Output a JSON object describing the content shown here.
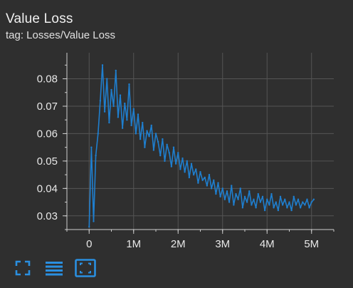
{
  "card": {
    "title": "Value Loss",
    "subtitle": "tag: Losses/Value Loss"
  },
  "toolbar": {
    "icons": [
      "fullscreen-icon",
      "toggle-y-axis-icon",
      "fit-domain-icon"
    ]
  },
  "colors": {
    "background": "#2f2f2f",
    "series": "#1f7fcf",
    "grid": "#555555",
    "axis": "#cfcfcf",
    "icon": "#2a8fe0"
  },
  "chart_data": {
    "type": "line",
    "title": "",
    "xlabel": "",
    "ylabel": "",
    "xlim": [
      -500000,
      5500000
    ],
    "ylim": [
      0.025,
      0.0895
    ],
    "x_ticks": [
      0,
      1000000,
      2000000,
      3000000,
      4000000,
      5000000
    ],
    "x_tick_labels": [
      "0",
      "1M",
      "2M",
      "3M",
      "4M",
      "5M"
    ],
    "y_ticks": [
      0.03,
      0.04,
      0.05,
      0.06,
      0.07,
      0.08
    ],
    "y_tick_labels": [
      "0.03",
      "0.04",
      "0.05",
      "0.06",
      "0.07",
      "0.08"
    ],
    "grid": true,
    "series": [
      {
        "x": [
          0,
          50000,
          100000,
          150000,
          200000,
          250000,
          300000,
          350000,
          400000,
          450000,
          500000,
          550000,
          600000,
          650000,
          700000,
          750000,
          800000,
          850000,
          900000,
          950000,
          1000000,
          1050000,
          1100000,
          1150000,
          1200000,
          1250000,
          1300000,
          1350000,
          1400000,
          1450000,
          1500000,
          1550000,
          1600000,
          1650000,
          1700000,
          1750000,
          1800000,
          1850000,
          1900000,
          1950000,
          2000000,
          2050000,
          2100000,
          2150000,
          2200000,
          2250000,
          2300000,
          2350000,
          2400000,
          2450000,
          2500000,
          2550000,
          2600000,
          2650000,
          2700000,
          2750000,
          2800000,
          2850000,
          2900000,
          2950000,
          3000000,
          3050000,
          3100000,
          3150000,
          3200000,
          3250000,
          3300000,
          3350000,
          3400000,
          3450000,
          3500000,
          3550000,
          3600000,
          3650000,
          3700000,
          3750000,
          3800000,
          3850000,
          3900000,
          3950000,
          4000000,
          4050000,
          4100000,
          4150000,
          4200000,
          4250000,
          4300000,
          4350000,
          4400000,
          4450000,
          4500000,
          4550000,
          4600000,
          4650000,
          4700000,
          4750000,
          4800000,
          4850000,
          4900000,
          4950000,
          5000000,
          5050000
        ],
        "values": [
          0.026,
          0.055,
          0.028,
          0.052,
          0.06,
          0.072,
          0.085,
          0.068,
          0.08,
          0.064,
          0.076,
          0.07,
          0.083,
          0.066,
          0.074,
          0.062,
          0.071,
          0.065,
          0.078,
          0.063,
          0.069,
          0.06,
          0.067,
          0.058,
          0.064,
          0.055,
          0.061,
          0.059,
          0.063,
          0.054,
          0.06,
          0.057,
          0.052,
          0.058,
          0.05,
          0.056,
          0.053,
          0.048,
          0.055,
          0.049,
          0.053,
          0.047,
          0.051,
          0.046,
          0.05,
          0.044,
          0.049,
          0.045,
          0.047,
          0.042,
          0.046,
          0.043,
          0.044,
          0.041,
          0.045,
          0.04,
          0.043,
          0.038,
          0.042,
          0.037,
          0.04,
          0.036,
          0.039,
          0.035,
          0.041,
          0.034,
          0.038,
          0.036,
          0.04,
          0.033,
          0.037,
          0.035,
          0.039,
          0.034,
          0.036,
          0.033,
          0.038,
          0.035,
          0.037,
          0.032,
          0.036,
          0.034,
          0.038,
          0.033,
          0.035,
          0.032,
          0.037,
          0.034,
          0.036,
          0.033,
          0.035,
          0.032,
          0.037,
          0.034,
          0.036,
          0.033,
          0.035,
          0.034,
          0.036,
          0.033,
          0.035,
          0.036
        ]
      }
    ]
  }
}
